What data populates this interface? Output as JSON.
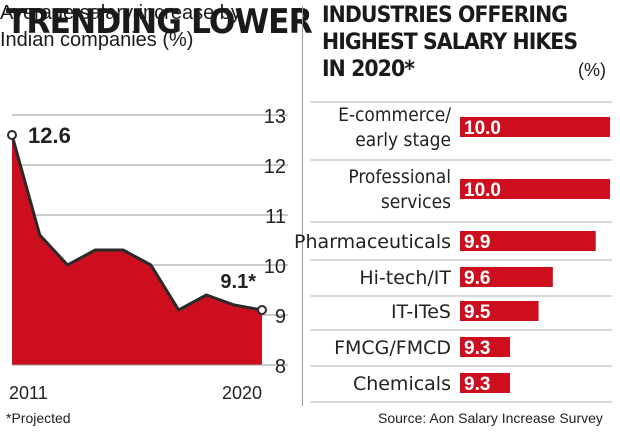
{
  "left": {
    "title": "TRENDING LOWER",
    "subtitle": "Average salary increase by Indian companies (%)",
    "footnote": "*Projected"
  },
  "right": {
    "title": "INDUSTRIES OFFERING HIGHEST SALARY HIKES IN 2020*",
    "unit": "(%)",
    "source": "Source: Aon Salary Increase Survey"
  },
  "colors": {
    "accent": "#cc0e1e",
    "line": "#2a2a2a"
  },
  "chart_data": [
    {
      "type": "area",
      "title": "TRENDING LOWER",
      "subtitle": "Average salary increase by Indian companies (%)",
      "x": [
        2011,
        2012,
        2013,
        2014,
        2015,
        2016,
        2017,
        2018,
        2019,
        2020
      ],
      "x_tick_labels": [
        "2011",
        "2020"
      ],
      "values": [
        12.6,
        10.6,
        10.0,
        10.3,
        10.3,
        10.0,
        9.1,
        9.4,
        9.2,
        9.1
      ],
      "y_ticks": [
        13,
        12,
        11,
        10,
        9,
        8
      ],
      "ylim": [
        8,
        13
      ],
      "annotations": [
        {
          "label": "12.6",
          "index": 0
        },
        {
          "label": "9.1*",
          "index": 9
        }
      ],
      "grid": "horizontal",
      "footnote": "*Projected"
    },
    {
      "type": "bar",
      "orientation": "horizontal",
      "title": "INDUSTRIES OFFERING HIGHEST SALARY HIKES IN 2020*",
      "unit": "(%)",
      "categories": [
        "E-commerce/ early stage",
        "Professional services",
        "Pharmaceuticals",
        "Hi-tech/IT",
        "IT-ITeS",
        "FMCG/FMCD",
        "Chemicals"
      ],
      "values": [
        10.0,
        10.0,
        9.9,
        9.6,
        9.5,
        9.3,
        9.3
      ],
      "value_labels": [
        "10.0",
        "10.0",
        "9.9",
        "9.6",
        "9.5",
        "9.3",
        "9.3"
      ],
      "source": "Source: Aon Salary Increase Survey"
    }
  ]
}
